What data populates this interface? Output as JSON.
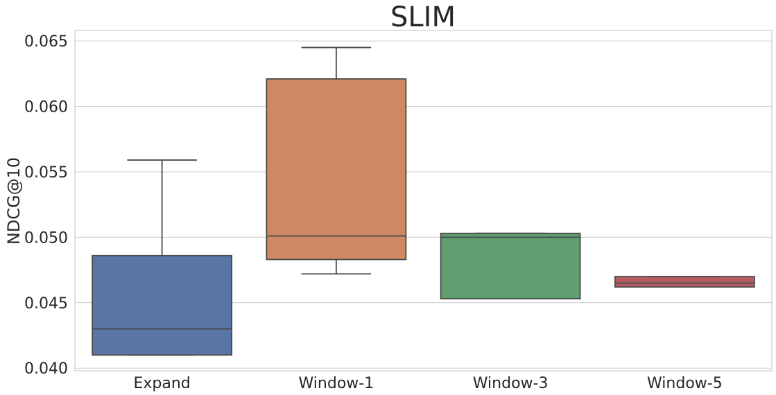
{
  "chart_data": {
    "type": "box",
    "title": "SLIM",
    "xlabel": "",
    "ylabel": "NDCG@10",
    "ylim": [
      0.0398,
      0.0658
    ],
    "yticks": [
      "0.040",
      "0.045",
      "0.050",
      "0.055",
      "0.060",
      "0.065"
    ],
    "ytick_values": [
      0.04,
      0.045,
      0.05,
      0.055,
      0.06,
      0.065
    ],
    "grid": true,
    "categories": [
      "Expand",
      "Window-1",
      "Window-3",
      "Window-5"
    ],
    "boxes": [
      {
        "category": "Expand",
        "whisker_low": 0.041,
        "q1": 0.041,
        "median": 0.043,
        "q3": 0.0486,
        "whisker_high": 0.0559,
        "color": "#5875a4"
      },
      {
        "category": "Window-1",
        "whisker_low": 0.0472,
        "q1": 0.0483,
        "median": 0.0501,
        "q3": 0.0621,
        "whisker_high": 0.0645,
        "color": "#cc8963"
      },
      {
        "category": "Window-3",
        "whisker_low": 0.0453,
        "q1": 0.0453,
        "median": 0.05,
        "q3": 0.0503,
        "whisker_high": 0.0503,
        "color": "#5f9e6e"
      },
      {
        "category": "Window-5",
        "whisker_low": 0.0462,
        "q1": 0.0462,
        "median": 0.0465,
        "q3": 0.047,
        "whisker_high": 0.047,
        "color": "#b55d60"
      }
    ]
  }
}
